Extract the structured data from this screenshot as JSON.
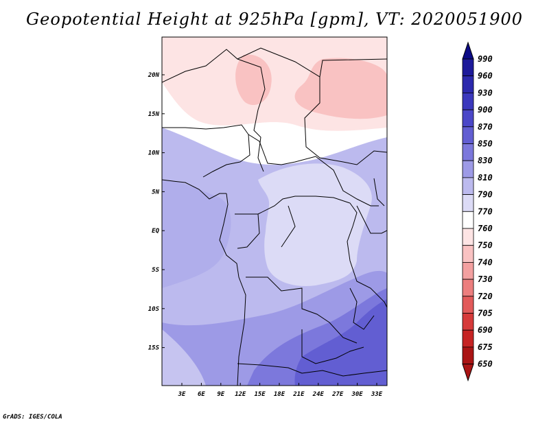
{
  "title": "Geopotential Height at 925hPa [gpm], VT: 2020051900",
  "credit": "GrADS: IGES/COLA",
  "lat_labels": [
    "20N",
    "15N",
    "10N",
    "5N",
    "EQ",
    "5S",
    "10S",
    "15S"
  ],
  "lon_labels": [
    "3E",
    "6E",
    "9E",
    "12E",
    "15E",
    "18E",
    "21E",
    "24E",
    "27E",
    "30E",
    "33E"
  ],
  "colorbar": {
    "levels": [
      "990",
      "960",
      "930",
      "900",
      "870",
      "850",
      "830",
      "810",
      "790",
      "770",
      "760",
      "750",
      "740",
      "730",
      "720",
      "705",
      "690",
      "675",
      "650"
    ],
    "colors": [
      "#0c0b86",
      "#1d1a9a",
      "#2c29ad",
      "#3b38bd",
      "#4b47c8",
      "#625ed2",
      "#7c78dc",
      "#9d9ae6",
      "#bcbaee",
      "#dcdbf6",
      "#ffffff",
      "#fde4e4",
      "#f9c2c2",
      "#f3a0a0",
      "#ec7e7e",
      "#e25a5a",
      "#d63a3a",
      "#c62424",
      "#aa1414"
    ]
  }
}
